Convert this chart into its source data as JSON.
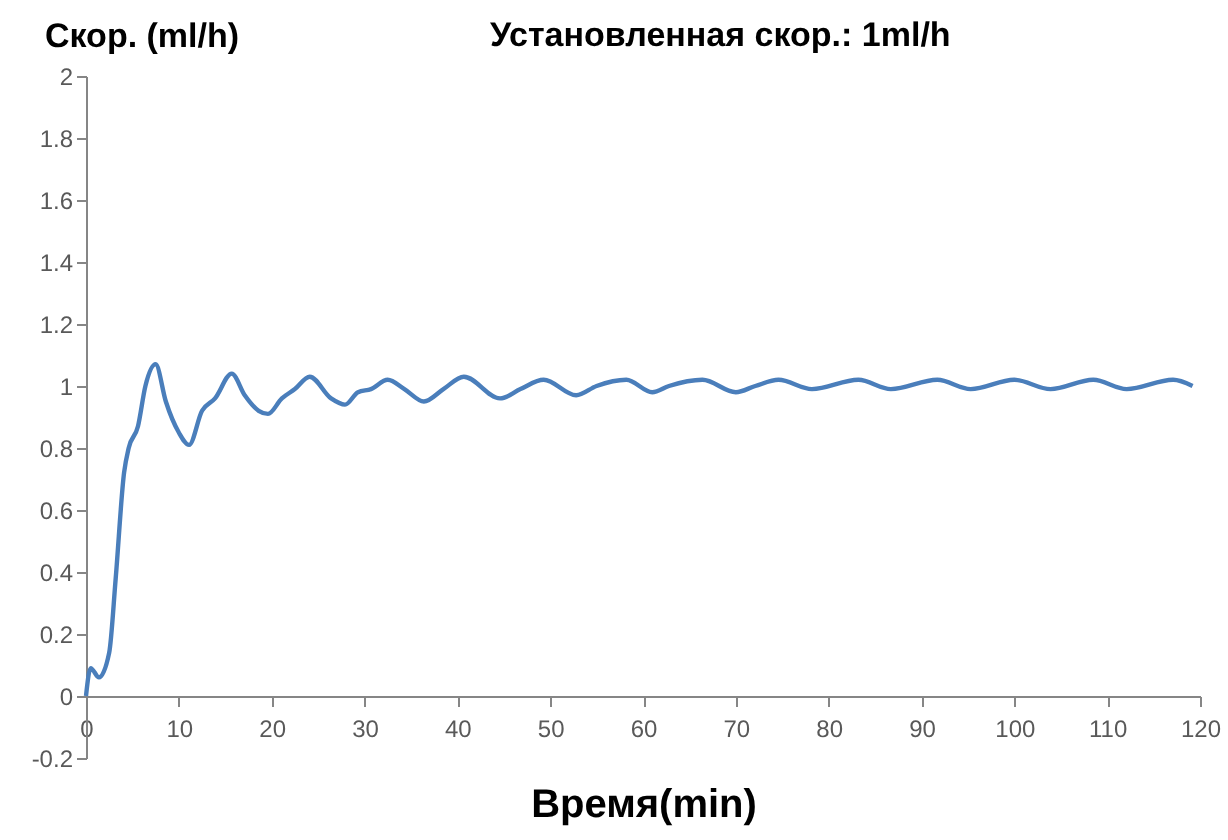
{
  "chart_data": {
    "type": "line",
    "title": "Установленная скор.: 1ml/h",
    "ylabel": "Скор. (ml/h)",
    "xlabel": "Время(min)",
    "x": [
      0,
      0.5,
      1.4,
      2.5,
      3.2,
      4.1,
      4.6,
      5.6,
      6.4,
      7.5,
      8.6,
      10,
      11.1,
      12.5,
      13.9,
      15.7,
      17.1,
      18.6,
      19.6,
      21.1,
      22.5,
      24.1,
      26.4,
      27.9,
      29.3,
      30.7,
      32.5,
      34.3,
      36.4,
      38.5,
      40.7,
      44.6,
      46.8,
      49.3,
      52.8,
      55,
      58.2,
      61,
      62.8,
      66.4,
      70,
      72.1,
      74.6,
      78.2,
      83.2,
      86.7,
      91.7,
      95.3,
      100,
      103.9,
      108.5,
      112.1,
      117.1,
      119.2
    ],
    "series": [
      {
        "color": "#4a7ebb",
        "values": [
          0,
          0.09,
          0.06,
          0.14,
          0.38,
          0.72,
          0.8,
          0.87,
          1.0,
          1.07,
          0.95,
          0.85,
          0.81,
          0.92,
          0.96,
          1.04,
          0.97,
          0.92,
          0.91,
          0.96,
          0.99,
          1.03,
          0.96,
          0.94,
          0.98,
          0.99,
          1.02,
          0.99,
          0.95,
          0.99,
          1.03,
          0.96,
          0.99,
          1.02,
          0.97,
          1.0,
          1.02,
          0.98,
          1.0,
          1.02,
          0.98,
          1.0,
          1.02,
          0.99,
          1.02,
          0.99,
          1.02,
          0.99,
          1.02,
          0.99,
          1.02,
          0.99,
          1.02,
          1.0
        ]
      }
    ],
    "xlim": [
      0,
      120
    ],
    "xticks": [
      0,
      10,
      20,
      30,
      40,
      50,
      60,
      70,
      80,
      90,
      100,
      110,
      120
    ],
    "ylim": [
      -0.2,
      2
    ],
    "yticks": [
      -0.2,
      0,
      0.2,
      0.4,
      0.6,
      0.8,
      1,
      1.2,
      1.4,
      1.6,
      1.8,
      2
    ],
    "grid": false,
    "marker": "none",
    "line_style": "solid"
  }
}
